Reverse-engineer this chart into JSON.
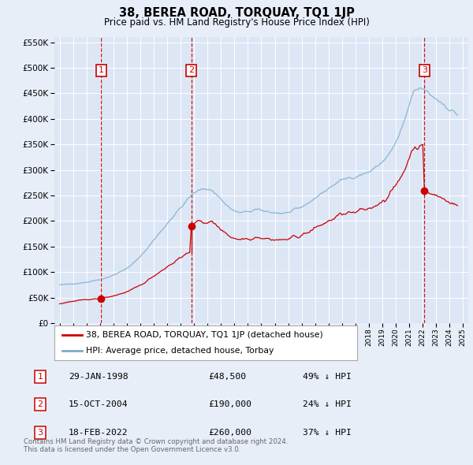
{
  "title": "38, BEREA ROAD, TORQUAY, TQ1 1JP",
  "subtitle": "Price paid vs. HM Land Registry's House Price Index (HPI)",
  "legend_label_red": "38, BEREA ROAD, TORQUAY, TQ1 1JP (detached house)",
  "legend_label_blue": "HPI: Average price, detached house, Torbay",
  "footer": "Contains HM Land Registry data © Crown copyright and database right 2024.\nThis data is licensed under the Open Government Licence v3.0.",
  "sales": [
    {
      "num": 1,
      "date": "29-JAN-1998",
      "price": 48500,
      "pct": "49%",
      "direction": "↓",
      "year": 1998.08
    },
    {
      "num": 2,
      "date": "15-OCT-2004",
      "price": 190000,
      "pct": "24%",
      "direction": "↓",
      "year": 2004.79
    },
    {
      "num": 3,
      "date": "18-FEB-2022",
      "price": 260000,
      "pct": "37%",
      "direction": "↓",
      "year": 2022.13
    }
  ],
  "ylim": [
    0,
    560000
  ],
  "yticks": [
    0,
    50000,
    100000,
    150000,
    200000,
    250000,
    300000,
    350000,
    400000,
    450000,
    500000,
    550000
  ],
  "xlim": [
    1994.6,
    2025.4
  ],
  "background_color": "#e8eef8",
  "plot_bg": "#dce6f5",
  "red_color": "#cc0000",
  "blue_color": "#7aadcc",
  "grid_color": "#ffffff"
}
